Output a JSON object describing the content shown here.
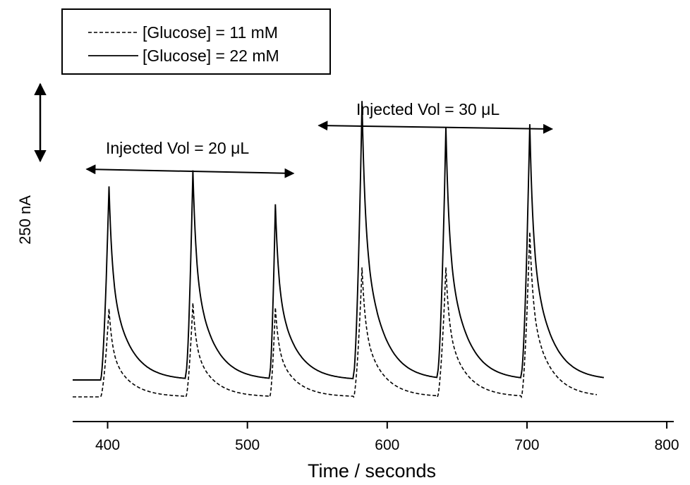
{
  "chart_data": {
    "type": "line",
    "title": "",
    "xlabel": "Time / seconds",
    "ylabel": "",
    "xlim": [
      375,
      805
    ],
    "ylim": [
      -80,
      1210
    ],
    "y_unit": "nA",
    "xticks": [
      400,
      500,
      600,
      700,
      800
    ],
    "grid": false,
    "legend": {
      "placement": "top-left",
      "entries": [
        {
          "label": "[Glucose] = 11 mM",
          "style": "dashed"
        },
        {
          "label": "[Glucose] = 22 mM",
          "style": "solid"
        }
      ]
    },
    "scale_bar": {
      "label": "250 nA",
      "value": 250
    },
    "annotations": [
      {
        "text": "Injected Vol = 20 μL",
        "x_range": [
          385,
          533
        ]
      },
      {
        "text": "Injected Vol = 30 μL",
        "x_range": [
          551,
          718
        ]
      }
    ],
    "series": [
      {
        "name": "[Glucose] = 11 mM",
        "style": "dashed",
        "baseline": 0,
        "x_range": [
          375,
          750
        ],
        "injection_times": [
          395,
          456,
          516,
          576,
          636,
          696
        ],
        "peak_times": [
          401,
          461,
          520,
          582,
          642,
          702
        ],
        "peak_values": [
          286,
          305,
          290,
          420,
          420,
          535
        ],
        "tail_start_values": [
          0,
          0,
          0,
          0,
          0,
          0
        ]
      },
      {
        "name": "[Glucose] = 22 mM",
        "style": "solid",
        "baseline": 55,
        "x_range": [
          375,
          755
        ],
        "injection_times": [
          395,
          456,
          516,
          576,
          636,
          696
        ],
        "peak_times": [
          401,
          461,
          520,
          582,
          642,
          702
        ],
        "peak_values": [
          683,
          735,
          625,
          960,
          875,
          885
        ],
        "tail_start_values": [
          55,
          75,
          75,
          75,
          75,
          75
        ]
      }
    ]
  }
}
